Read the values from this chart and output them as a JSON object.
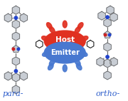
{
  "bg_color": "#ffffff",
  "host_color": "#e03020",
  "emitter_color": "#4878d0",
  "host_label": "Host",
  "emitter_label": "Emitter",
  "para_label": "para-",
  "ortho_label": "ortho-",
  "label_color": "#3060cc",
  "label_fontsize": 8,
  "ring_fill": "#c8cdd4",
  "ring_edge": "#555555",
  "N_color": "#2244cc",
  "O_color": "#cc2222",
  "splash_red": "#e03020",
  "splash_blue": "#4878d0"
}
